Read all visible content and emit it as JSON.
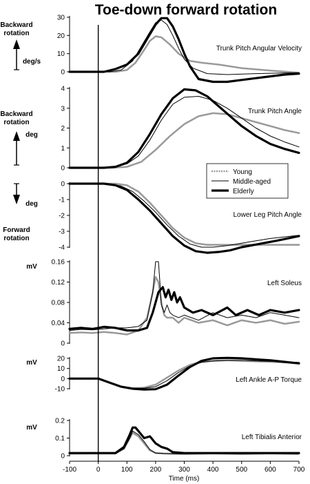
{
  "title": "Toe-down forward rotation",
  "side_labels": {
    "backward_1": [
      "Backward",
      "rotation"
    ],
    "backward_2": [
      "Backward",
      "rotation"
    ],
    "forward": [
      "Forward",
      "rotation"
    ]
  },
  "legend": [
    "Young",
    "Middle-aged",
    "Elderly"
  ],
  "series_styles": {
    "Young": {
      "color": "#9a9a9a",
      "dash": "2,1.5",
      "width": 2.6
    },
    "Middle-aged": {
      "color": "#000000",
      "dash": "",
      "width": 1
    },
    "Elderly": {
      "color": "#000000",
      "dash": "",
      "width": 3.2
    }
  },
  "chart_data": {
    "type": "line",
    "xlabel": "Time (ms)",
    "xlim": [
      -100,
      700
    ],
    "x_ticks": [
      -100,
      0,
      100,
      200,
      300,
      400,
      500,
      600,
      700
    ],
    "event_line_x": 0,
    "panels": [
      {
        "label": "Trunk Pitch Angular Velocity",
        "unit": "deg/s",
        "ylim": [
          0,
          30
        ],
        "y_ticks": [
          0,
          10,
          20,
          30
        ],
        "series": [
          {
            "name": "Young",
            "x": [
              -100,
              60,
              100,
              130,
              160,
              180,
              200,
              220,
              250,
              280,
              320,
              360,
              420,
              500,
              600,
              700
            ],
            "y": [
              0,
              0,
              1,
              5,
              12,
              17,
              19.5,
              19,
              15,
              10,
              6,
              5,
              4,
              2,
              0.7,
              -0.5
            ]
          },
          {
            "name": "Middle-aged",
            "x": [
              -100,
              40,
              80,
              120,
              150,
              180,
              200,
              220,
              240,
              260,
              280,
              300,
              330,
              380,
              450,
              550,
              700
            ],
            "y": [
              0,
              0,
              1,
              6,
              14,
              22,
              27,
              28.5,
              26,
              20,
              13,
              7,
              2,
              -1,
              -1.5,
              -1,
              -0.5
            ]
          },
          {
            "name": "Elderly",
            "x": [
              -100,
              20,
              60,
              100,
              140,
              170,
              200,
              220,
              240,
              260,
              280,
              300,
              320,
              350,
              400,
              450,
              500,
              550,
              600,
              650,
              700
            ],
            "y": [
              0,
              0,
              1.5,
              4,
              10,
              18,
              26,
              29.5,
              29.5,
              25,
              18,
              10,
              3,
              -4,
              -5.5,
              -5.5,
              -4.5,
              -3.5,
              -2.5,
              -1.5,
              -1
            ]
          }
        ]
      },
      {
        "label": "Trunk Pitch Angle",
        "unit": "deg",
        "ylim": [
          0,
          4
        ],
        "y_ticks": [
          0,
          1,
          2,
          3,
          4
        ],
        "series": [
          {
            "name": "Young",
            "x": [
              -100,
              50,
              100,
              150,
              200,
              250,
              300,
              350,
              400,
              450,
              500,
              550,
              600,
              650,
              700
            ],
            "y": [
              0,
              0,
              0.05,
              0.3,
              0.9,
              1.6,
              2.2,
              2.6,
              2.75,
              2.7,
              2.5,
              2.3,
              2.1,
              1.9,
              1.75
            ]
          },
          {
            "name": "Middle-aged",
            "x": [
              -100,
              20,
              60,
              100,
              140,
              180,
              220,
              260,
              300,
              350,
              400,
              450,
              500,
              550,
              600,
              650,
              700
            ],
            "y": [
              0,
              0,
              0.05,
              0.2,
              0.6,
              1.4,
              2.4,
              3.2,
              3.55,
              3.6,
              3.4,
              3.0,
              2.5,
              2.0,
              1.6,
              1.3,
              1.05
            ]
          },
          {
            "name": "Elderly",
            "x": [
              -100,
              20,
              60,
              100,
              140,
              180,
              220,
              260,
              300,
              340,
              380,
              420,
              460,
              500,
              550,
              600,
              650,
              700
            ],
            "y": [
              0,
              0,
              0.05,
              0.25,
              0.8,
              1.7,
              2.7,
              3.5,
              3.95,
              3.9,
              3.6,
              3.1,
              2.6,
              2.1,
              1.6,
              1.2,
              0.95,
              0.75
            ]
          }
        ]
      },
      {
        "label": "Lower Leg Pitch Angle",
        "unit": "deg",
        "ylim": [
          -4,
          0
        ],
        "y_ticks": [
          0,
          -1,
          -2,
          -3,
          -4
        ],
        "series": [
          {
            "name": "Young",
            "x": [
              -100,
              60,
              100,
              140,
              180,
              220,
              260,
              300,
              340,
              380,
              420,
              470,
              520,
              600,
              700
            ],
            "y": [
              0,
              0,
              -0.1,
              -0.5,
              -1.2,
              -2.0,
              -2.8,
              -3.4,
              -3.75,
              -3.85,
              -3.85,
              -3.85,
              -3.85,
              -3.85,
              -3.85
            ]
          },
          {
            "name": "Middle-aged",
            "x": [
              -100,
              40,
              80,
              120,
              160,
              200,
              240,
              280,
              320,
              360,
              400,
              450,
              500,
              550,
              600,
              650,
              700
            ],
            "y": [
              0,
              0,
              -0.15,
              -0.5,
              -1.1,
              -1.8,
              -2.6,
              -3.3,
              -3.8,
              -4.0,
              -4.0,
              -3.9,
              -3.75,
              -3.6,
              -3.45,
              -3.35,
              -3.25
            ]
          },
          {
            "name": "Elderly",
            "x": [
              -100,
              20,
              60,
              100,
              140,
              180,
              220,
              260,
              300,
              340,
              380,
              420,
              460,
              500,
              560,
              620,
              700
            ],
            "y": [
              0,
              0,
              -0.1,
              -0.4,
              -1.0,
              -1.7,
              -2.5,
              -3.3,
              -3.9,
              -4.25,
              -4.35,
              -4.3,
              -4.2,
              -4.0,
              -3.8,
              -3.6,
              -3.3
            ]
          }
        ]
      },
      {
        "label": "Left Soleus",
        "unit": "mV",
        "ylim": [
          0,
          0.16
        ],
        "y_ticks": [
          0,
          0.04,
          0.08,
          0.12,
          0.16
        ],
        "series": [
          {
            "name": "Young",
            "x": [
              -100,
              -60,
              -20,
              20,
              60,
              100,
              140,
              170,
              190,
              200,
              210,
              220,
              230,
              240,
              260,
              280,
              300,
              350,
              400,
              450,
              500,
              550,
              600,
              650,
              700
            ],
            "y": [
              0.02,
              0.021,
              0.02,
              0.022,
              0.02,
              0.017,
              0.025,
              0.05,
              0.1,
              0.13,
              0.12,
              0.08,
              0.055,
              0.05,
              0.05,
              0.04,
              0.05,
              0.04,
              0.045,
              0.035,
              0.045,
              0.04,
              0.045,
              0.038,
              0.042
            ]
          },
          {
            "name": "Middle-aged",
            "x": [
              -100,
              -60,
              -20,
              20,
              60,
              100,
              140,
              170,
              190,
              200,
              205,
              210,
              215,
              220,
              230,
              240,
              250,
              260,
              280,
              300,
              350,
              400,
              450,
              500,
              550,
              600,
              650,
              700
            ],
            "y": [
              0.025,
              0.027,
              0.026,
              0.028,
              0.03,
              0.03,
              0.033,
              0.045,
              0.1,
              0.16,
              0.16,
              0.16,
              0.12,
              0.075,
              0.06,
              0.075,
              0.06,
              0.055,
              0.05,
              0.055,
              0.045,
              0.06,
              0.05,
              0.055,
              0.05,
              0.06,
              0.055,
              0.05
            ]
          },
          {
            "name": "Elderly",
            "x": [
              -100,
              -60,
              -20,
              20,
              60,
              100,
              140,
              170,
              190,
              210,
              225,
              235,
              245,
              255,
              265,
              275,
              285,
              300,
              330,
              360,
              400,
              450,
              480,
              520,
              560,
              600,
              650,
              700
            ],
            "y": [
              0.028,
              0.03,
              0.028,
              0.032,
              0.03,
              0.025,
              0.025,
              0.03,
              0.06,
              0.1,
              0.11,
              0.09,
              0.105,
              0.085,
              0.1,
              0.08,
              0.09,
              0.07,
              0.06,
              0.065,
              0.055,
              0.07,
              0.055,
              0.065,
              0.055,
              0.065,
              0.06,
              0.065
            ]
          }
        ]
      },
      {
        "label": "Left Ankle A-P Torque",
        "unit": "mV",
        "ylim": [
          -10,
          20
        ],
        "y_ticks": [
          -10,
          0,
          10,
          20
        ],
        "series": [
          {
            "name": "Young",
            "x": [
              -100,
              0,
              40,
              80,
              120,
              160,
              200,
              240,
              280,
              320,
              360,
              400,
              450,
              500,
              550,
              600,
              650,
              700
            ],
            "y": [
              0,
              0,
              -4,
              -8,
              -9.5,
              -9,
              -6,
              1,
              8,
              13.5,
              16.5,
              17.5,
              18,
              17.5,
              17,
              16.5,
              16,
              15.5
            ]
          },
          {
            "name": "Middle-aged",
            "x": [
              -100,
              0,
              40,
              80,
              120,
              160,
              200,
              240,
              280,
              320,
              360,
              400,
              450,
              500,
              550,
              600,
              650,
              700
            ],
            "y": [
              0,
              0,
              -4,
              -8,
              -9.5,
              -9.5,
              -8,
              -2,
              6,
              12.5,
              16,
              17.5,
              18,
              18,
              17.5,
              17,
              16.5,
              16
            ]
          },
          {
            "name": "Elderly",
            "x": [
              -100,
              0,
              40,
              80,
              120,
              160,
              200,
              240,
              280,
              320,
              360,
              400,
              450,
              500,
              550,
              600,
              650,
              700
            ],
            "y": [
              0,
              0,
              -4,
              -8,
              -10,
              -10.8,
              -10.5,
              -6,
              3,
              11.5,
              17.5,
              20,
              20.5,
              20,
              19,
              18,
              16.5,
              15
            ]
          }
        ]
      },
      {
        "label": "Left Tibialis Anterior",
        "unit": "mV",
        "ylim": [
          0,
          0.2
        ],
        "y_ticks": [
          0,
          0.1,
          0.2
        ],
        "series": [
          {
            "name": "Young",
            "x": [
              -100,
              0,
              60,
              90,
              110,
              120,
              130,
              140,
              160,
              180,
              200,
              230,
              300,
              400,
              500,
              600,
              700
            ],
            "y": [
              0.012,
              0.012,
              0.012,
              0.04,
              0.1,
              0.13,
              0.12,
              0.11,
              0.07,
              0.03,
              0.015,
              0.012,
              0.01,
              0.012,
              0.01,
              0.012,
              0.01
            ]
          },
          {
            "name": "Middle-aged",
            "x": [
              -100,
              0,
              60,
              90,
              110,
              120,
              130,
              140,
              160,
              180,
              200,
              230,
              300,
              400,
              500,
              600,
              700
            ],
            "y": [
              0.01,
              0.012,
              0.012,
              0.04,
              0.1,
              0.14,
              0.13,
              0.12,
              0.08,
              0.035,
              0.015,
              0.012,
              0.01,
              0.012,
              0.01,
              0.012,
              0.01
            ]
          },
          {
            "name": "Elderly",
            "x": [
              -100,
              0,
              60,
              90,
              110,
              120,
              130,
              140,
              150,
              160,
              180,
              200,
              220,
              240,
              260,
              300,
              400,
              500,
              600,
              700
            ],
            "y": [
              0.015,
              0.015,
              0.015,
              0.05,
              0.12,
              0.16,
              0.16,
              0.14,
              0.12,
              0.1,
              0.11,
              0.07,
              0.05,
              0.04,
              0.02,
              0.015,
              0.015,
              0.015,
              0.015,
              0.015
            ]
          }
        ]
      }
    ]
  }
}
